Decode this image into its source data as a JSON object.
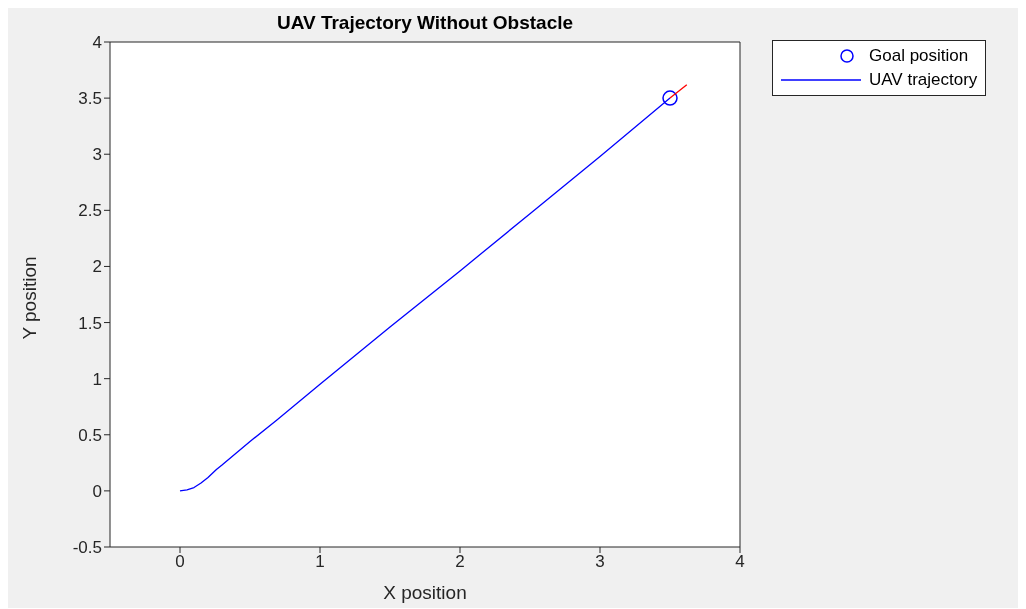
{
  "chart_data": {
    "type": "line",
    "title": "UAV Trajectory Without Obstacle",
    "xlabel": "X position",
    "ylabel": "Y position",
    "xlim": [
      -0.5,
      4
    ],
    "xticks": [
      0,
      1,
      2,
      3,
      4
    ],
    "ylim": [
      -0.5,
      4
    ],
    "yticks": [
      -0.5,
      0,
      0.5,
      1,
      1.5,
      2,
      2.5,
      3,
      3.5,
      4
    ],
    "grid": false,
    "legend": "top right",
    "series": [
      {
        "name": "Goal position",
        "type": "scatter",
        "marker": "circle",
        "color": "#0000ff",
        "x": [
          3.5
        ],
        "values": [
          3.5
        ]
      },
      {
        "name": "UAV trajectory",
        "color": "#0000ff",
        "x": [
          0,
          0.05,
          0.1,
          0.15,
          0.2,
          0.26,
          0.3,
          0.5,
          0.69,
          1,
          1.5,
          2,
          2.5,
          3,
          3.5
        ],
        "values": [
          0,
          0.01,
          0.03,
          0.07,
          0.12,
          0.19,
          0.23,
          0.44,
          0.63,
          0.95,
          1.46,
          1.96,
          2.47,
          2.98,
          3.5
        ]
      },
      {
        "type": "line",
        "color": "#ff0000",
        "x": [
          3.5,
          3.62
        ],
        "values": [
          3.5,
          3.62
        ]
      }
    ]
  }
}
